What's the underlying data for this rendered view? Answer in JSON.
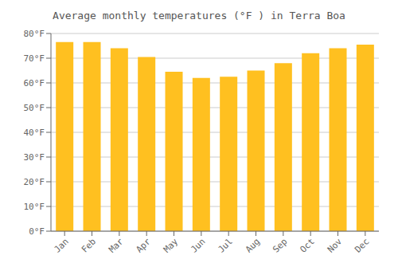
{
  "chart_data": {
    "type": "bar",
    "title": "Average monthly temperatures (°F ) in Terra Boa",
    "categories": [
      "Jan",
      "Feb",
      "Mar",
      "Apr",
      "May",
      "Jun",
      "Jul",
      "Aug",
      "Sep",
      "Oct",
      "Nov",
      "Dec"
    ],
    "values": [
      76.5,
      76.5,
      74.0,
      70.5,
      64.5,
      62.0,
      62.5,
      65.0,
      68.0,
      72.0,
      74.0,
      75.5
    ],
    "color": "#FFC020",
    "ylim": [
      0,
      80
    ],
    "yticks": [
      {
        "value": 0,
        "label": "0°F"
      },
      {
        "value": 10,
        "label": "10°F"
      },
      {
        "value": 20,
        "label": "20°F"
      },
      {
        "value": 30,
        "label": "30°F"
      },
      {
        "value": 40,
        "label": "40°F"
      },
      {
        "value": 50,
        "label": "50°F"
      },
      {
        "value": 60,
        "label": "60°F"
      },
      {
        "value": 70,
        "label": "70°F"
      },
      {
        "value": 80,
        "label": "80°F"
      }
    ],
    "grid": true
  }
}
